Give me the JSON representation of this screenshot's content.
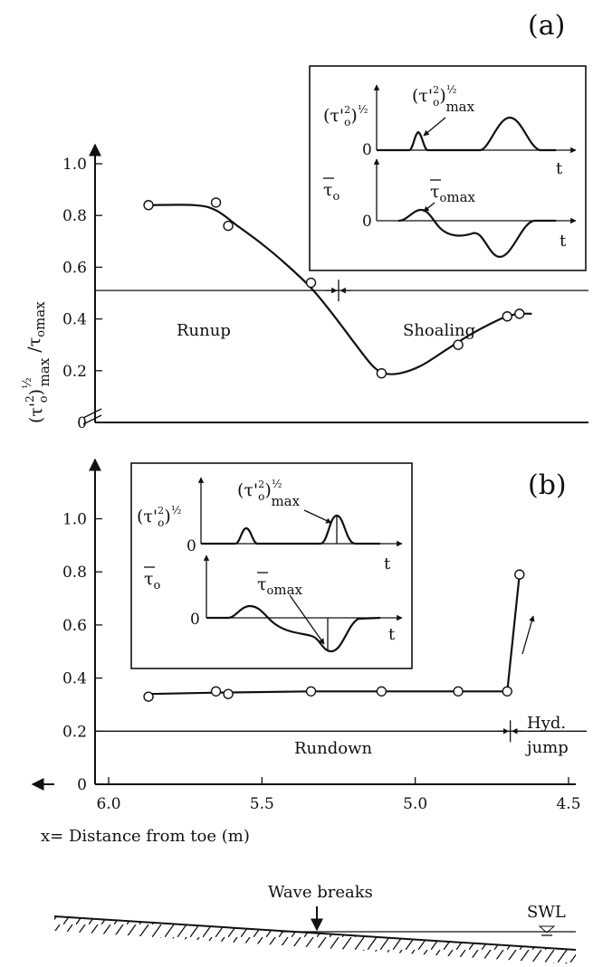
{
  "figure": {
    "sub_sym": "o",
    "exp_half": "½",
    "exp_2": "2"
  },
  "chart_data": [
    {
      "type": "line",
      "panel_label": "(a)",
      "xlabel": "",
      "ylabel_main": "(τ'",
      "ylabel_suffix": "max",
      "ylabel_denominator": "/τ",
      "ylabel_denominator_suffix": "max",
      "xlim": [
        6.0,
        4.5
      ],
      "ylim": [
        0,
        1.1
      ],
      "yticks": [
        "0",
        "0.2",
        "0.4",
        "0.6",
        "0.8",
        "1.0"
      ],
      "ytick_values": [
        0,
        0.2,
        0.4,
        0.6,
        0.8,
        1.0
      ],
      "reference_line_y": 0.51,
      "divider_x": 5.25,
      "regions": {
        "left": "Runup",
        "right": "Shoaling"
      },
      "series": [
        {
          "points_x": [
            5.87,
            5.65,
            5.61,
            5.34,
            5.11,
            4.86,
            4.7,
            4.66
          ],
          "points_y": [
            0.84,
            0.85,
            0.76,
            0.54,
            0.19,
            0.3,
            0.41,
            0.42
          ],
          "curve_x": [
            5.87,
            5.72,
            5.65,
            5.58,
            5.5,
            5.42,
            5.34,
            5.27,
            5.2,
            5.14,
            5.1,
            5.05,
            4.98,
            4.9,
            4.82,
            4.74,
            4.7,
            4.66,
            4.62
          ],
          "curve_y": [
            0.84,
            0.84,
            0.82,
            0.76,
            0.69,
            0.61,
            0.52,
            0.42,
            0.31,
            0.22,
            0.19,
            0.19,
            0.22,
            0.28,
            0.34,
            0.39,
            0.41,
            0.42,
            0.42
          ]
        }
      ],
      "inset": {
        "top_label": "(τ'",
        "top_peak_label": "(τ'",
        "top_peak_suffix": "max",
        "bottom_label": "τ",
        "bottom_peak_label": "τ",
        "bottom_peak_suffix": "max",
        "zero": "0",
        "t": "t"
      }
    },
    {
      "type": "line",
      "panel_label": "(b)",
      "xlabel": "x= Distance from toe (m)",
      "xticks": [
        "6.0",
        "5.5",
        "5.0",
        "4.5"
      ],
      "xtick_values": [
        6.0,
        5.5,
        5.0,
        4.5
      ],
      "xlim": [
        6.0,
        4.5
      ],
      "ylim": [
        0,
        1.2
      ],
      "yticks": [
        "0",
        "0.2",
        "0.4",
        "0.6",
        "0.8",
        "1.0"
      ],
      "ytick_values": [
        0,
        0.2,
        0.4,
        0.6,
        0.8,
        1.0
      ],
      "reference_line_y": 0.2,
      "divider_x": 4.69,
      "regions": {
        "left": "Rundown",
        "right_line1": "Hyd.",
        "right_line2": "jump"
      },
      "series": [
        {
          "points_x": [
            5.87,
            5.65,
            5.61,
            5.34,
            5.11,
            4.86,
            4.7,
            4.66
          ],
          "points_y": [
            0.33,
            0.35,
            0.34,
            0.35,
            0.35,
            0.35,
            0.35,
            0.79
          ],
          "curve_x": [
            5.87,
            5.65,
            5.34,
            5.11,
            4.86,
            4.7,
            4.66
          ],
          "curve_y": [
            0.34,
            0.345,
            0.35,
            0.35,
            0.35,
            0.35,
            0.79
          ]
        }
      ],
      "inset": {
        "top_label": "(τ'",
        "top_peak_label": "(τ'",
        "top_peak_suffix": "max",
        "bottom_label": "τ",
        "bottom_peak_label": "τ",
        "bottom_peak_suffix": "max",
        "zero": "0",
        "t": "t"
      }
    }
  ],
  "beach_sketch": {
    "wave_label": "Wave breaks",
    "swl_label": "SWL"
  }
}
